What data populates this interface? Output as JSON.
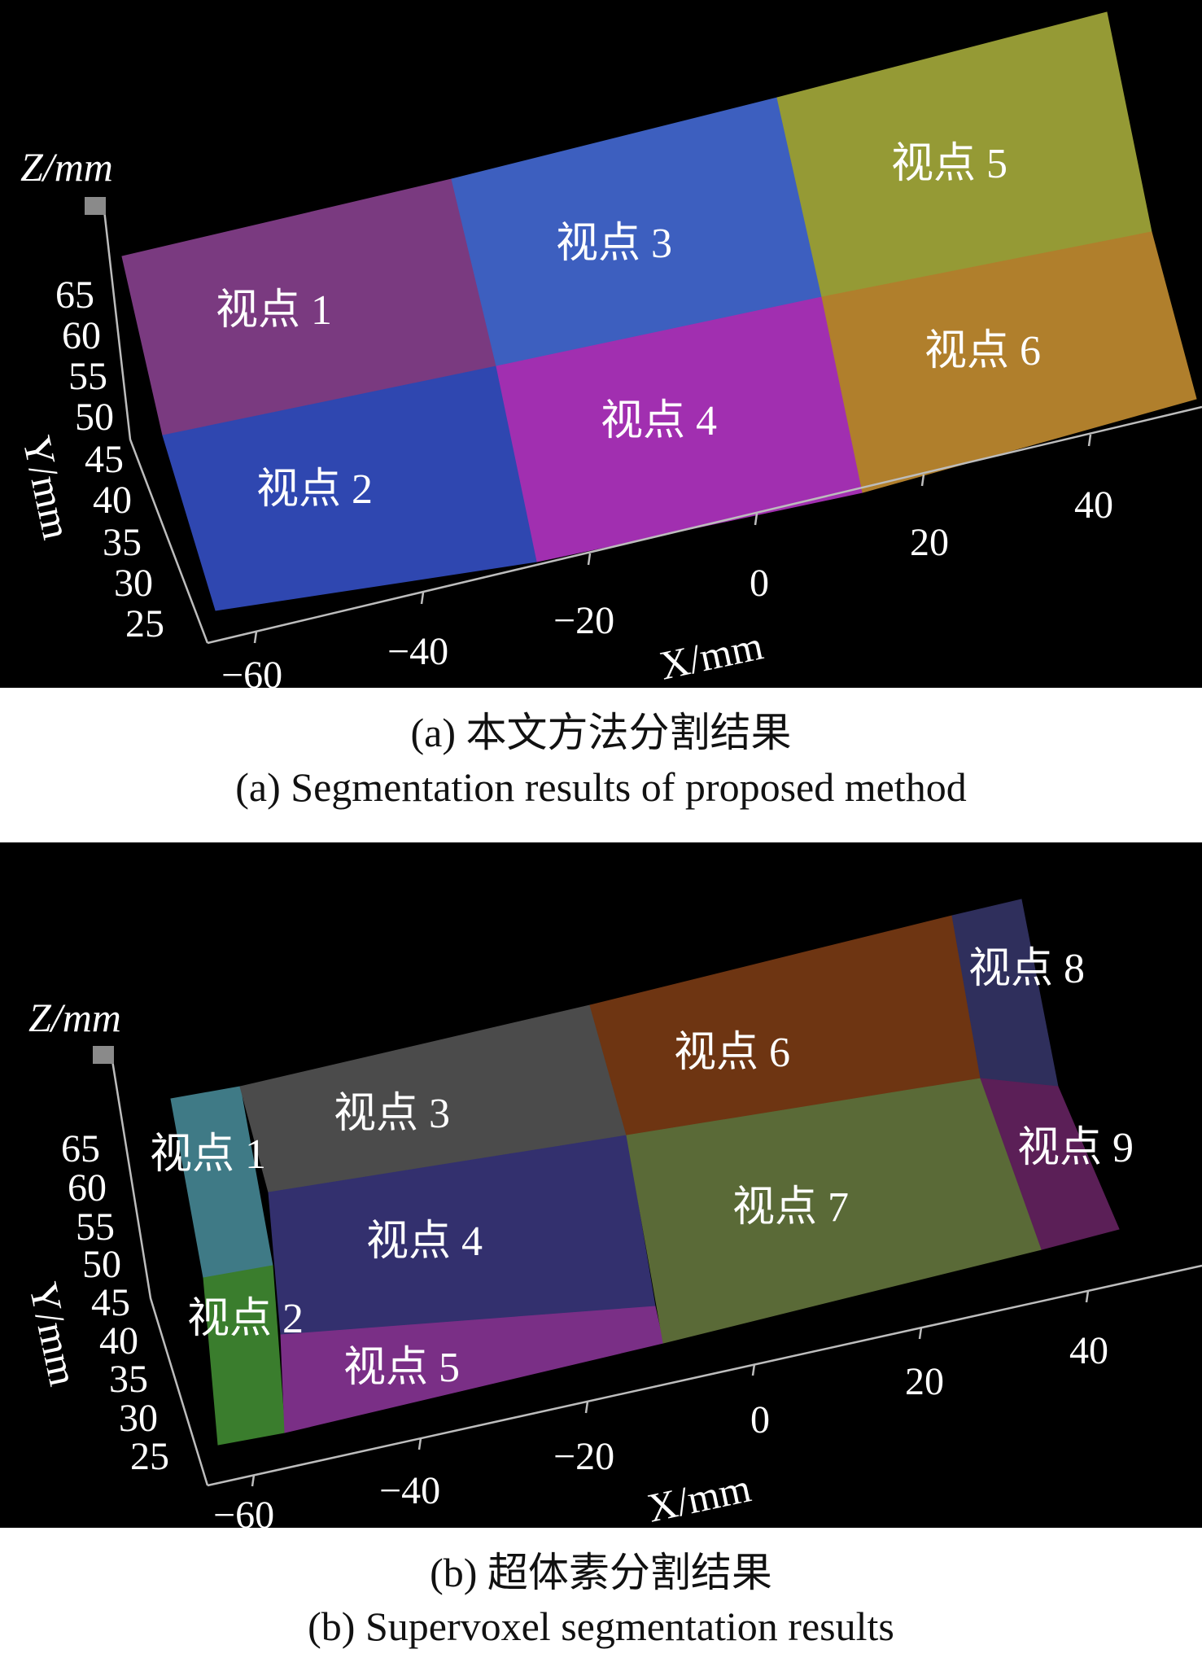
{
  "figure_a": {
    "regions": [
      {
        "label": "视点 1",
        "color": "#7a3a80"
      },
      {
        "label": "视点 2",
        "color": "#2f47b0"
      },
      {
        "label": "视点 3",
        "color": "#3d5fbf"
      },
      {
        "label": "视点 4",
        "color": "#a12fb0"
      },
      {
        "label": "视点 5",
        "color": "#959a35"
      },
      {
        "label": "视点 6",
        "color": "#b07f2c"
      }
    ],
    "axes": {
      "z_title": "Z/mm",
      "y_title": "Y/mm",
      "x_title": "X/mm",
      "y_ticks": [
        "65",
        "60",
        "55",
        "50",
        "45",
        "40",
        "35",
        "30",
        "25"
      ],
      "x_ticks": [
        "−60",
        "−40",
        "−20",
        "0",
        "20",
        "40"
      ]
    },
    "caption_zh": "(a) 本文方法分割结果",
    "caption_en": "(a) Segmentation results of  proposed method"
  },
  "figure_b": {
    "regions": [
      {
        "label": "视点 1",
        "color": "#3f7a86"
      },
      {
        "label": "视点 2",
        "color": "#3a7d2d"
      },
      {
        "label": "视点 3",
        "color": "#4b4b4b"
      },
      {
        "label": "视点 4",
        "color": "#33306e"
      },
      {
        "label": "视点 5",
        "color": "#7a2f86"
      },
      {
        "label": "视点 6",
        "color": "#6e3512"
      },
      {
        "label": "视点 7",
        "color": "#5a6a37"
      },
      {
        "label": "视点 8",
        "color": "#2f2f5c"
      },
      {
        "label": "视点 9",
        "color": "#5b1f57"
      }
    ],
    "axes": {
      "z_title": "Z/mm",
      "y_title": "Y/mm",
      "x_title": "X/mm",
      "y_ticks": [
        "65",
        "60",
        "55",
        "50",
        "45",
        "40",
        "35",
        "30",
        "25"
      ],
      "x_ticks": [
        "−60",
        "−40",
        "−20",
        "0",
        "20",
        "40"
      ]
    },
    "caption_zh": "(b) 超体素分割结果",
    "caption_en": "(b) Supervoxel segmentation results"
  }
}
